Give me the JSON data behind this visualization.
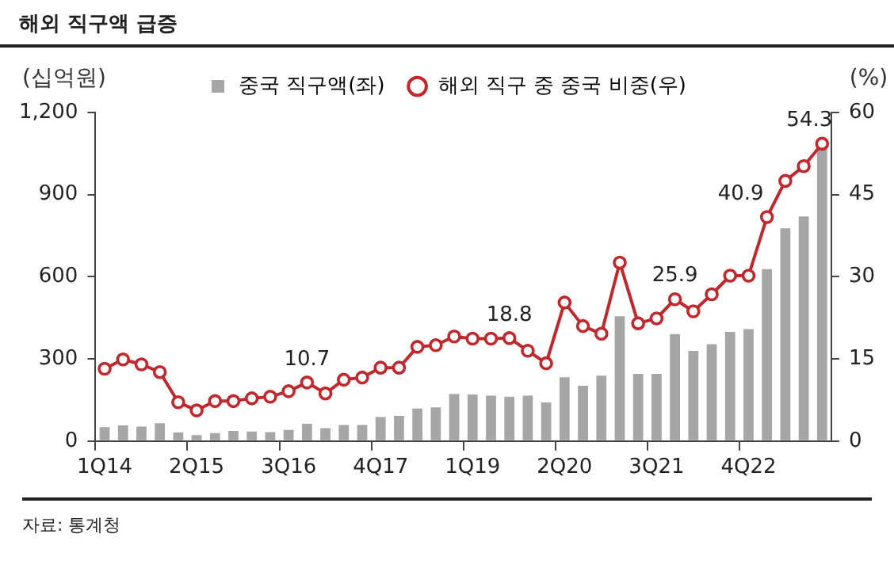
{
  "chart_data": {
    "type": "bar",
    "title": "해외 직구액 급증",
    "ylabel": "(십억원)",
    "y2label": "(%)",
    "annotations": [
      "자료: 통계청"
    ],
    "categories": [
      "1Q14",
      null,
      null,
      null,
      null,
      "2Q15",
      null,
      null,
      null,
      null,
      "3Q16",
      null,
      null,
      null,
      null,
      "4Q17",
      null,
      null,
      null,
      null,
      "1Q19",
      null,
      null,
      null,
      null,
      "2Q20",
      null,
      null,
      null,
      null,
      "3Q21",
      null,
      null,
      null,
      null,
      "4Q22",
      null,
      null,
      null,
      null
    ],
    "series": [
      {
        "name": "중국 직구액(좌)",
        "color": "#a6a6a6",
        "values": [
          51,
          57,
          53,
          65,
          31,
          22,
          29,
          37,
          35,
          33,
          41,
          63,
          47,
          59,
          59,
          88,
          92,
          119,
          123,
          172,
          170,
          166,
          162,
          166,
          141,
          233,
          202,
          239,
          456,
          245,
          245,
          391,
          329,
          354,
          399,
          409,
          628,
          777,
          820,
          1078
        ]
      },
      {
        "name": "해외 직구 중 중국 비중(우)",
        "type": "line",
        "axis": "y2",
        "color": "#c0282d",
        "marker": "circle",
        "values": [
          13.2,
          14.9,
          14.0,
          12.6,
          7.1,
          5.6,
          7.3,
          7.3,
          7.8,
          8.1,
          9.1,
          10.7,
          8.7,
          11.2,
          11.6,
          13.4,
          13.4,
          17.2,
          17.5,
          19.1,
          18.7,
          18.7,
          18.8,
          16.5,
          14.2,
          25.3,
          21.0,
          19.6,
          32.6,
          21.5,
          22.4,
          25.9,
          23.7,
          26.8,
          30.2,
          30.2,
          40.9,
          47.5,
          50.2,
          54.3
        ],
        "value_labels": [
          null,
          null,
          null,
          null,
          null,
          null,
          null,
          null,
          null,
          null,
          null,
          "10.7",
          null,
          null,
          null,
          null,
          null,
          null,
          null,
          null,
          null,
          null,
          "18.8",
          null,
          null,
          null,
          null,
          null,
          null,
          null,
          null,
          "25.9",
          null,
          null,
          null,
          null,
          "40.9",
          null,
          null,
          "54.3"
        ]
      }
    ],
    "ylim": [
      0,
      1200
    ],
    "yticks": [
      0,
      300,
      600,
      900,
      {
        "value": 1200,
        "label": "1,200"
      }
    ],
    "y2lim": [
      0,
      60
    ],
    "y2ticks": [
      0,
      15,
      30,
      45,
      60
    ],
    "grid": false,
    "legend": "top"
  }
}
